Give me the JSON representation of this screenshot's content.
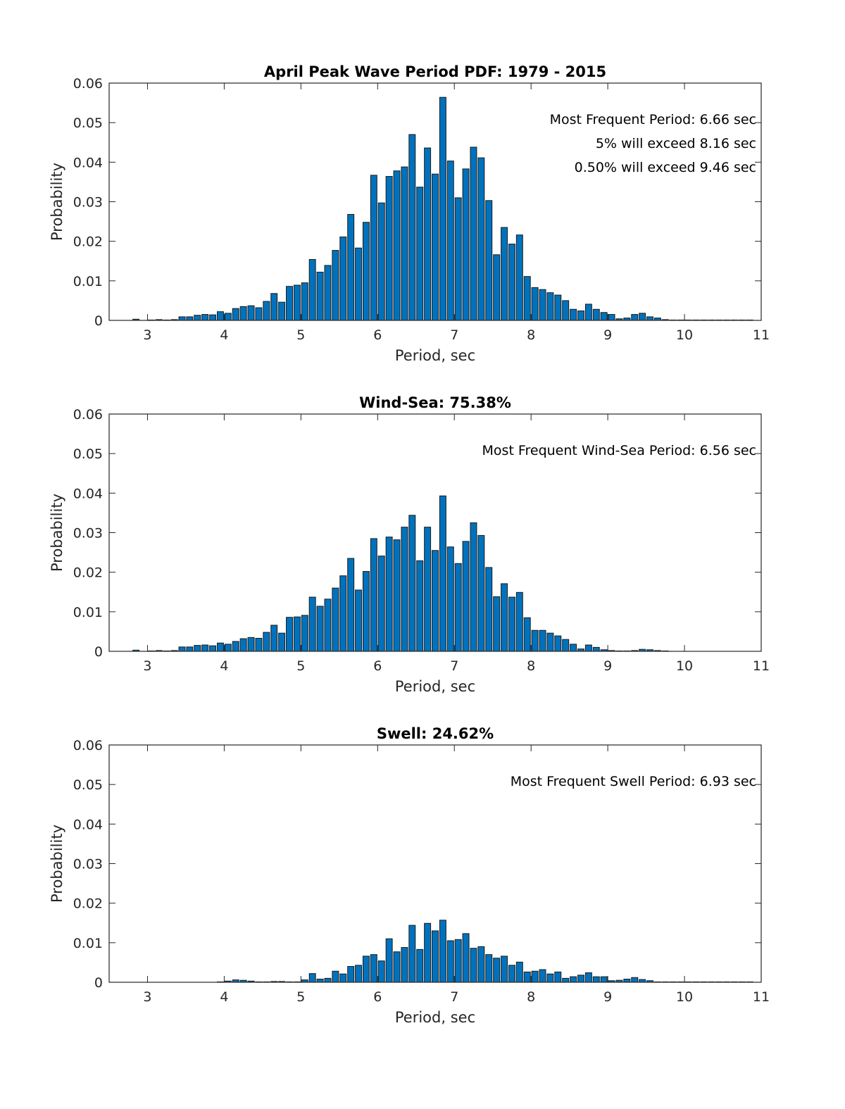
{
  "chart_data": [
    {
      "type": "bar",
      "title": "April Peak Wave Period PDF: 1979 - 2015",
      "xlabel": "Period, sec",
      "ylabel": "Probability",
      "xlim": [
        2.5,
        11
      ],
      "ylim": [
        0,
        0.06
      ],
      "xticks": [
        "3",
        "4",
        "5",
        "6",
        "7",
        "8",
        "9",
        "10",
        "11"
      ],
      "yticks": [
        "0",
        "0.01",
        "0.02",
        "0.03",
        "0.04",
        "0.05",
        "0.06"
      ],
      "grid": false,
      "bar_color": "#0072BD",
      "annotations": [
        "Most Frequent Period: 6.66 sec",
        "5% will exceed 8.16 sec",
        "0.50% will exceed 9.46 sec"
      ],
      "x_start": 2.85,
      "x_step": 0.1,
      "values": [
        0.0003,
        0,
        0.0001,
        0.0002,
        0.0001,
        0.0002,
        0.0009,
        0.0009,
        0.0013,
        0.0015,
        0.0014,
        0.0022,
        0.0018,
        0.003,
        0.0035,
        0.0037,
        0.0032,
        0.0048,
        0.0068,
        0.0046,
        0.0086,
        0.0089,
        0.0095,
        0.0154,
        0.0122,
        0.0139,
        0.0177,
        0.0211,
        0.0268,
        0.0183,
        0.0248,
        0.0367,
        0.0297,
        0.0364,
        0.0378,
        0.0388,
        0.047,
        0.0337,
        0.0436,
        0.037,
        0.0564,
        0.0403,
        0.031,
        0.0383,
        0.0438,
        0.0411,
        0.0303,
        0.0166,
        0.0235,
        0.0193,
        0.0216,
        0.0111,
        0.0083,
        0.0078,
        0.007,
        0.0064,
        0.005,
        0.0028,
        0.0024,
        0.0041,
        0.0028,
        0.002,
        0.0015,
        0.0004,
        0.0006,
        0.0015,
        0.0018,
        0.0009,
        0.0006,
        0.0002,
        0.0001,
        0.0001,
        0.0001,
        0.0001,
        0.0001,
        0.0001,
        0.0001,
        0.0001,
        0.0001,
        0.0001,
        0.0001
      ]
    },
    {
      "type": "bar",
      "title": "Wind-Sea: 75.38%",
      "xlabel": "Period, sec",
      "ylabel": "Probability",
      "xlim": [
        2.5,
        11
      ],
      "ylim": [
        0,
        0.06
      ],
      "xticks": [
        "3",
        "4",
        "5",
        "6",
        "7",
        "8",
        "9",
        "10",
        "11"
      ],
      "yticks": [
        "0",
        "0.01",
        "0.02",
        "0.03",
        "0.04",
        "0.05",
        "0.06"
      ],
      "grid": false,
      "bar_color": "#0072BD",
      "annotations": [
        "Most Frequent Wind-Sea Period: 6.56 sec"
      ],
      "x_start": 2.85,
      "x_step": 0.1,
      "values": [
        0.0003,
        0,
        0.0001,
        0.0002,
        0.0001,
        0.0002,
        0.0011,
        0.0011,
        0.0015,
        0.0016,
        0.0014,
        0.0021,
        0.0018,
        0.0025,
        0.0032,
        0.0035,
        0.0033,
        0.0048,
        0.0066,
        0.0046,
        0.0086,
        0.0087,
        0.0091,
        0.0137,
        0.0114,
        0.0132,
        0.016,
        0.0191,
        0.0235,
        0.0155,
        0.0202,
        0.0285,
        0.0241,
        0.0289,
        0.0282,
        0.0314,
        0.0344,
        0.0229,
        0.0314,
        0.0255,
        0.0393,
        0.0264,
        0.0222,
        0.0278,
        0.0325,
        0.0293,
        0.0212,
        0.0138,
        0.0171,
        0.0137,
        0.0149,
        0.0085,
        0.0053,
        0.0053,
        0.0046,
        0.0039,
        0.003,
        0.0018,
        0.0006,
        0.0016,
        0.001,
        0.0004,
        0.0002,
        0.0001,
        0.0001,
        0.0002,
        0.0005,
        0.0004,
        0.0002,
        0.0001,
        0,
        0,
        0,
        0,
        0,
        0,
        0,
        0,
        0,
        0,
        0
      ]
    },
    {
      "type": "bar",
      "title": "Swell: 24.62%",
      "xlabel": "Period, sec",
      "ylabel": "Probability",
      "xlim": [
        2.5,
        11
      ],
      "ylim": [
        0,
        0.06
      ],
      "xticks": [
        "3",
        "4",
        "5",
        "6",
        "7",
        "8",
        "9",
        "10",
        "11"
      ],
      "yticks": [
        "0",
        "0.01",
        "0.02",
        "0.03",
        "0.04",
        "0.05",
        "0.06"
      ],
      "grid": false,
      "bar_color": "#0072BD",
      "annotations": [
        "Most Frequent Swell Period: 6.93 sec"
      ],
      "x_start": 2.85,
      "x_step": 0.1,
      "values": [
        0,
        0,
        0,
        0,
        0,
        0,
        0,
        0,
        0,
        0,
        0,
        0.0001,
        0.0003,
        0.0006,
        0.0005,
        0.0003,
        0.0001,
        0.0001,
        0.0002,
        0.0002,
        0.0001,
        0.0001,
        0.0006,
        0.0022,
        0.0008,
        0.001,
        0.0028,
        0.0021,
        0.004,
        0.0043,
        0.0066,
        0.007,
        0.0054,
        0.011,
        0.0077,
        0.0088,
        0.0144,
        0.0083,
        0.0149,
        0.013,
        0.0157,
        0.0105,
        0.0108,
        0.0123,
        0.0086,
        0.009,
        0.007,
        0.0061,
        0.0066,
        0.0043,
        0.0051,
        0.0026,
        0.0028,
        0.0032,
        0.0021,
        0.0026,
        0.001,
        0.0014,
        0.0018,
        0.0024,
        0.0014,
        0.0014,
        0.0004,
        0.0005,
        0.0008,
        0.0012,
        0.0007,
        0.0004,
        0.0001,
        0.0001,
        0.0001,
        0.0001,
        0.0001,
        0.0001,
        0.0001,
        0.0001,
        0.0001,
        0.0001,
        0.0001,
        0.0001,
        0.0001
      ]
    }
  ]
}
